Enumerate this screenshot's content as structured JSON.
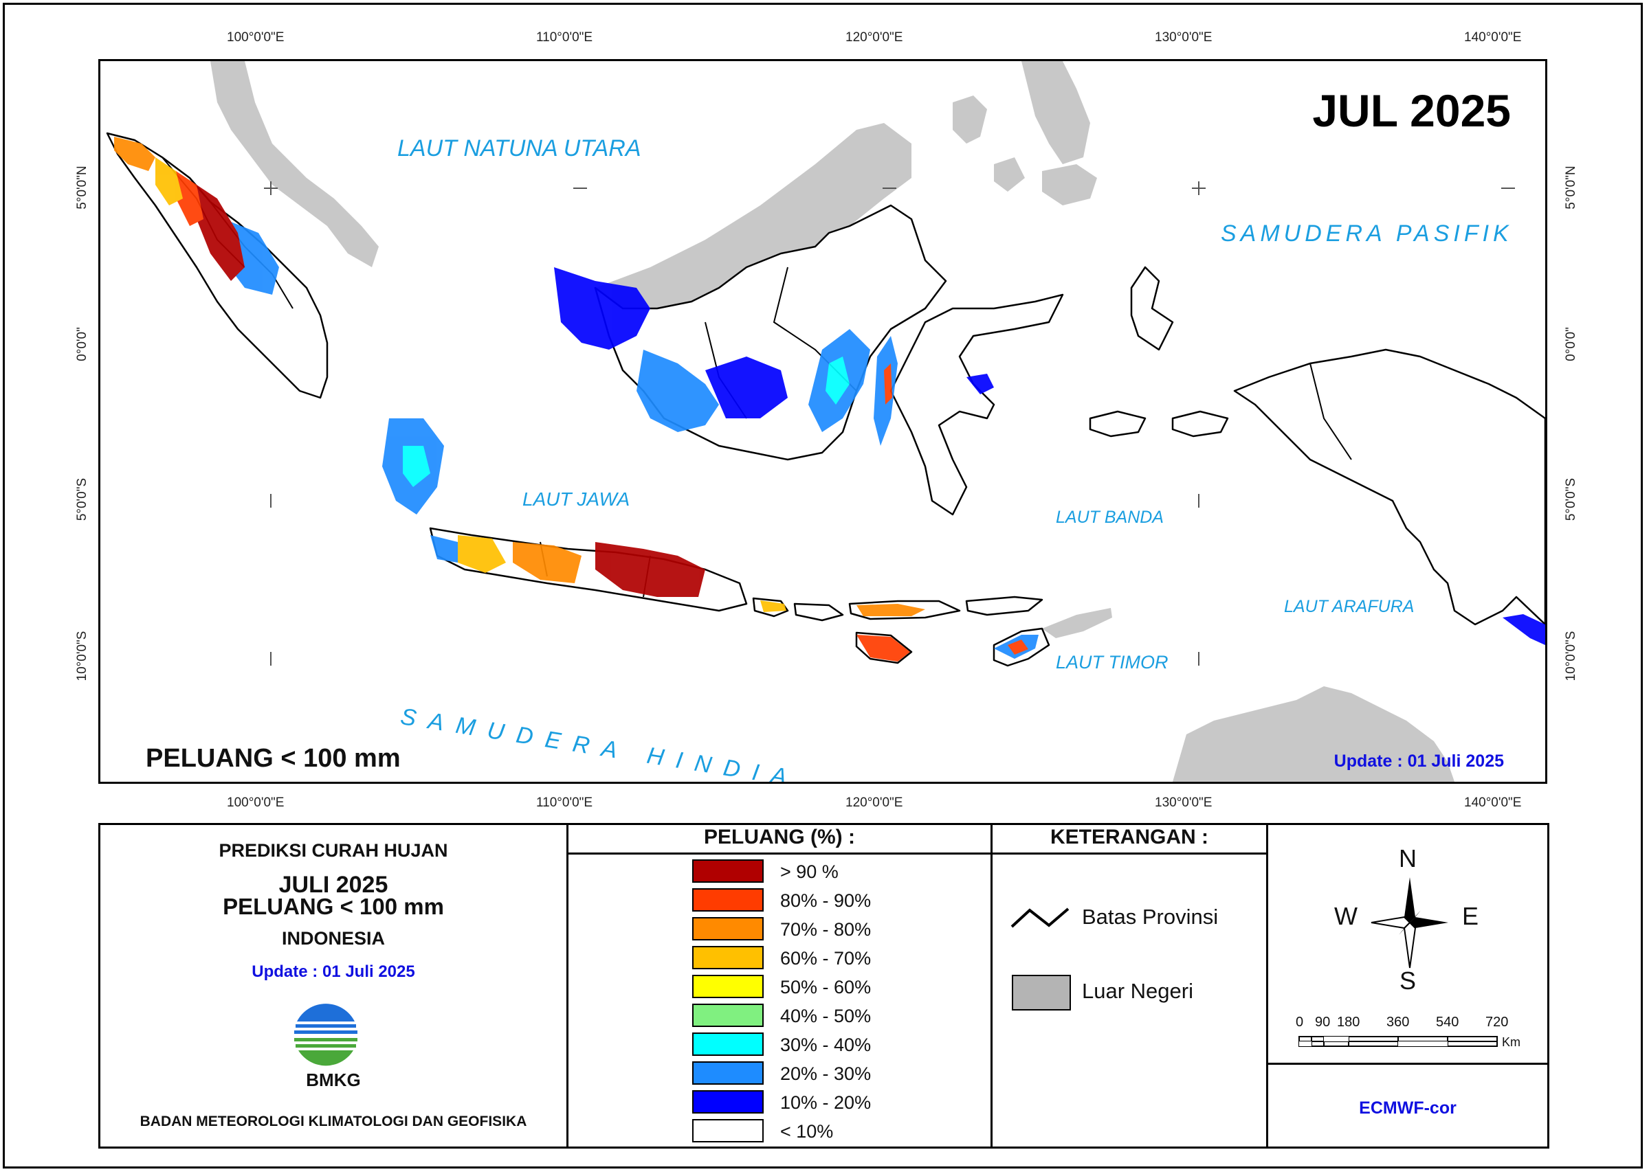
{
  "map": {
    "period_label": "JUL 2025",
    "variable_label": "PELUANG < 100 mm",
    "update_label": "Update : 01 Juli  2025",
    "longitude_ticks": [
      "100°0'0\"E",
      "110°0'0\"E",
      "120°0'0\"E",
      "130°0'0\"E",
      "140°0'0\"E"
    ],
    "latitude_ticks": [
      "5°0'0\"N",
      "0°0'0\"",
      "5°0'0\"S",
      "10°0'0\"S"
    ],
    "sea_labels": {
      "natuna": "LAUT NATUNA UTARA",
      "pasifik": "SAMUDERA PASIFIK",
      "jawa": "LAUT JAWA",
      "banda": "LAUT BANDA",
      "arafura": "LAUT ARAFURA",
      "timor": "LAUT TIMOR",
      "hindia": "SAMUDERA HINDIA"
    },
    "colors": {
      "foreign_land": "#c8c8c8",
      "sea_label": "#1a9ee0",
      "update": "#1010e0"
    }
  },
  "info_panel": {
    "heading": "PREDIKSI CURAH HUJAN",
    "month": "JULI 2025",
    "variable": "PELUANG < 100 mm",
    "region": "INDONESIA",
    "update": "Update : 01 Juli  2025",
    "logo_text": "BMKG",
    "agency": "BADAN METEOROLOGI KLIMATOLOGI DAN GEOFISIKA"
  },
  "legend": {
    "title": "PELUANG (%) :",
    "classes": [
      {
        "label": "> 90 %",
        "color": "#b00000"
      },
      {
        "label": "80% - 90%",
        "color": "#ff3c00"
      },
      {
        "label": "70% - 80%",
        "color": "#ff8a00"
      },
      {
        "label": "60% - 70%",
        "color": "#ffc000"
      },
      {
        "label": "50% - 60%",
        "color": "#ffff00"
      },
      {
        "label": "40% - 50%",
        "color": "#80f080"
      },
      {
        "label": "30% - 40%",
        "color": "#00ffff"
      },
      {
        "label": "20% - 30%",
        "color": "#1e8cff"
      },
      {
        "label": "10% - 20%",
        "color": "#0000ff"
      },
      {
        "label": "< 10%",
        "color": "#ffffff"
      }
    ]
  },
  "keterangan": {
    "title": "KETERANGAN :",
    "boundary_label": "Batas Provinsi",
    "foreign_label": "Luar Negeri"
  },
  "compass": {
    "north": "N",
    "south": "S",
    "east": "E",
    "west": "W"
  },
  "scale_bar": {
    "labels": [
      "0",
      "90",
      "180",
      "360",
      "540",
      "720"
    ],
    "unit": "Km"
  },
  "model": "ECMWF-cor"
}
